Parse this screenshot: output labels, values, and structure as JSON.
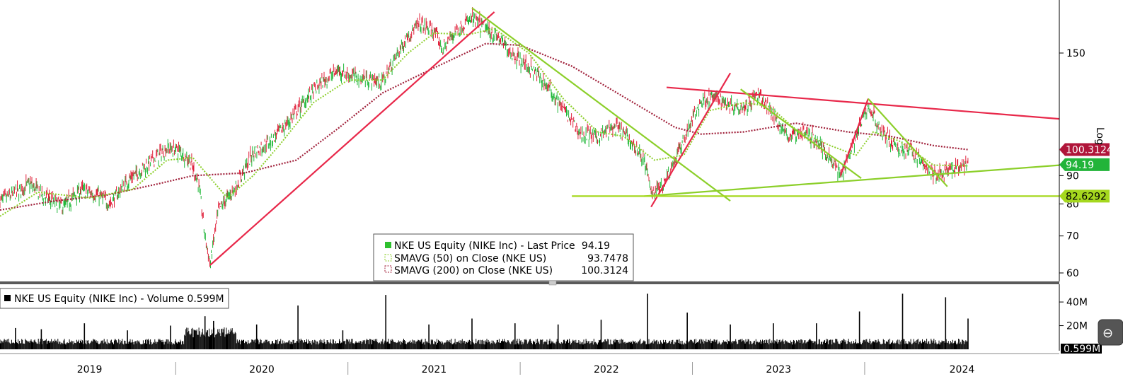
{
  "chart_data": [
    {
      "type": "candlestick",
      "scale": "log",
      "scale_label": "Log",
      "ylim": [
        58,
        185
      ],
      "y_ticks": [
        60,
        70,
        80,
        90,
        150
      ],
      "x_years": [
        "2019",
        "2020",
        "2021",
        "2022",
        "2023",
        "2024"
      ],
      "legend": {
        "placement": "bottom-center",
        "rows": [
          {
            "label": "NKE US Equity (NIKE Inc) - Last Price",
            "value": "94.19",
            "color": "#2ec02e"
          },
          {
            "label": "SMAVG (50)  on Close (NKE US)",
            "value": "93.7478",
            "color": "#8ccf2a"
          },
          {
            "label": "SMAVG (200)  on Close (NKE US)",
            "value": "100.3124",
            "color": "#a0203a"
          }
        ]
      },
      "price_tags": [
        {
          "value": 100.3124,
          "text": "100.3124",
          "bg": "#b0153a",
          "fg": "#ffffff"
        },
        {
          "value": 94.19,
          "text": "94.19",
          "bg": "#22b43a",
          "fg": "#ffffff"
        },
        {
          "value": 82.6292,
          "text": "82.6292",
          "bg": "#a5d81e",
          "fg": "#000000"
        }
      ],
      "close_path": [
        {
          "t": 2018.98,
          "v": 81
        },
        {
          "t": 2019.08,
          "v": 84
        },
        {
          "t": 2019.15,
          "v": 87
        },
        {
          "t": 2019.25,
          "v": 82
        },
        {
          "t": 2019.35,
          "v": 79
        },
        {
          "t": 2019.45,
          "v": 85
        },
        {
          "t": 2019.55,
          "v": 83
        },
        {
          "t": 2019.62,
          "v": 80
        },
        {
          "t": 2019.72,
          "v": 88
        },
        {
          "t": 2019.85,
          "v": 95
        },
        {
          "t": 2019.95,
          "v": 101
        },
        {
          "t": 2020.02,
          "v": 100
        },
        {
          "t": 2020.08,
          "v": 96
        },
        {
          "t": 2020.13,
          "v": 88
        },
        {
          "t": 2020.17,
          "v": 70
        },
        {
          "t": 2020.2,
          "v": 62
        },
        {
          "t": 2020.25,
          "v": 78
        },
        {
          "t": 2020.35,
          "v": 86
        },
        {
          "t": 2020.45,
          "v": 99
        },
        {
          "t": 2020.55,
          "v": 104
        },
        {
          "t": 2020.65,
          "v": 112
        },
        {
          "t": 2020.75,
          "v": 123
        },
        {
          "t": 2020.85,
          "v": 133
        },
        {
          "t": 2020.95,
          "v": 140
        },
        {
          "t": 2021.0,
          "v": 137
        },
        {
          "t": 2021.1,
          "v": 135
        },
        {
          "t": 2021.2,
          "v": 133
        },
        {
          "t": 2021.28,
          "v": 148
        },
        {
          "t": 2021.35,
          "v": 162
        },
        {
          "t": 2021.42,
          "v": 169
        },
        {
          "t": 2021.5,
          "v": 164
        },
        {
          "t": 2021.55,
          "v": 152
        },
        {
          "t": 2021.62,
          "v": 164
        },
        {
          "t": 2021.72,
          "v": 173
        },
        {
          "t": 2021.8,
          "v": 166
        },
        {
          "t": 2021.87,
          "v": 160
        },
        {
          "t": 2021.95,
          "v": 150
        },
        {
          "t": 2022.03,
          "v": 143
        },
        {
          "t": 2022.1,
          "v": 137
        },
        {
          "t": 2022.18,
          "v": 128
        },
        {
          "t": 2022.28,
          "v": 115
        },
        {
          "t": 2022.35,
          "v": 107
        },
        {
          "t": 2022.45,
          "v": 106
        },
        {
          "t": 2022.55,
          "v": 110
        },
        {
          "t": 2022.62,
          "v": 106
        },
        {
          "t": 2022.72,
          "v": 96
        },
        {
          "t": 2022.76,
          "v": 84
        },
        {
          "t": 2022.82,
          "v": 86
        },
        {
          "t": 2022.9,
          "v": 96
        },
        {
          "t": 2022.97,
          "v": 108
        },
        {
          "t": 2023.05,
          "v": 123
        },
        {
          "t": 2023.12,
          "v": 125
        },
        {
          "t": 2023.22,
          "v": 121
        },
        {
          "t": 2023.3,
          "v": 120
        },
        {
          "t": 2023.38,
          "v": 126
        },
        {
          "t": 2023.45,
          "v": 118
        },
        {
          "t": 2023.55,
          "v": 106
        },
        {
          "t": 2023.65,
          "v": 108
        },
        {
          "t": 2023.72,
          "v": 104
        },
        {
          "t": 2023.8,
          "v": 97
        },
        {
          "t": 2023.86,
          "v": 90
        },
        {
          "t": 2023.95,
          "v": 106
        },
        {
          "t": 2024.02,
          "v": 120
        },
        {
          "t": 2024.1,
          "v": 108
        },
        {
          "t": 2024.18,
          "v": 101
        },
        {
          "t": 2024.27,
          "v": 100
        },
        {
          "t": 2024.33,
          "v": 95
        },
        {
          "t": 2024.4,
          "v": 90
        },
        {
          "t": 2024.47,
          "v": 91
        },
        {
          "t": 2024.55,
          "v": 93
        },
        {
          "t": 2024.6,
          "v": 94.19
        }
      ],
      "sma50_path": [
        {
          "t": 2018.98,
          "v": 76
        },
        {
          "t": 2019.2,
          "v": 84
        },
        {
          "t": 2019.5,
          "v": 82
        },
        {
          "t": 2019.75,
          "v": 85
        },
        {
          "t": 2019.95,
          "v": 96
        },
        {
          "t": 2020.1,
          "v": 97
        },
        {
          "t": 2020.3,
          "v": 82
        },
        {
          "t": 2020.45,
          "v": 90
        },
        {
          "t": 2020.6,
          "v": 102
        },
        {
          "t": 2020.8,
          "v": 122
        },
        {
          "t": 2021.0,
          "v": 134
        },
        {
          "t": 2021.2,
          "v": 134
        },
        {
          "t": 2021.35,
          "v": 150
        },
        {
          "t": 2021.5,
          "v": 163
        },
        {
          "t": 2021.7,
          "v": 162
        },
        {
          "t": 2021.85,
          "v": 166
        },
        {
          "t": 2022.05,
          "v": 150
        },
        {
          "t": 2022.25,
          "v": 124
        },
        {
          "t": 2022.45,
          "v": 108
        },
        {
          "t": 2022.6,
          "v": 106
        },
        {
          "t": 2022.78,
          "v": 96
        },
        {
          "t": 2022.95,
          "v": 98
        },
        {
          "t": 2023.1,
          "v": 118
        },
        {
          "t": 2023.3,
          "v": 122
        },
        {
          "t": 2023.45,
          "v": 120
        },
        {
          "t": 2023.6,
          "v": 109
        },
        {
          "t": 2023.8,
          "v": 102
        },
        {
          "t": 2023.95,
          "v": 98
        },
        {
          "t": 2024.05,
          "v": 108
        },
        {
          "t": 2024.2,
          "v": 104
        },
        {
          "t": 2024.4,
          "v": 94
        },
        {
          "t": 2024.6,
          "v": 93.7478
        }
      ],
      "sma200_path": [
        {
          "t": 2018.98,
          "v": 78
        },
        {
          "t": 2019.3,
          "v": 81
        },
        {
          "t": 2019.6,
          "v": 83
        },
        {
          "t": 2019.9,
          "v": 87
        },
        {
          "t": 2020.1,
          "v": 90
        },
        {
          "t": 2020.4,
          "v": 91
        },
        {
          "t": 2020.7,
          "v": 96
        },
        {
          "t": 2020.95,
          "v": 110
        },
        {
          "t": 2021.2,
          "v": 127
        },
        {
          "t": 2021.5,
          "v": 141
        },
        {
          "t": 2021.8,
          "v": 156
        },
        {
          "t": 2022.0,
          "v": 155
        },
        {
          "t": 2022.3,
          "v": 142
        },
        {
          "t": 2022.6,
          "v": 125
        },
        {
          "t": 2022.9,
          "v": 110
        },
        {
          "t": 2023.05,
          "v": 107
        },
        {
          "t": 2023.3,
          "v": 108
        },
        {
          "t": 2023.6,
          "v": 112
        },
        {
          "t": 2023.9,
          "v": 108
        },
        {
          "t": 2024.15,
          "v": 106
        },
        {
          "t": 2024.4,
          "v": 102
        },
        {
          "t": 2024.6,
          "v": 100.3124
        }
      ],
      "trendlines": [
        {
          "color": "#e8284a",
          "from": {
            "t": 2020.2,
            "v": 62
          },
          "to": {
            "t": 2021.85,
            "v": 178
          }
        },
        {
          "color": "#e8284a",
          "from": {
            "t": 2022.76,
            "v": 79
          },
          "to": {
            "t": 2023.22,
            "v": 138
          }
        },
        {
          "color": "#e8284a",
          "from": {
            "t": 2023.86,
            "v": 90
          },
          "to": {
            "t": 2024.02,
            "v": 124
          }
        },
        {
          "color": "#e8284a",
          "from": {
            "t": 2022.85,
            "v": 130
          },
          "to": {
            "t": 2025.13,
            "v": 114
          }
        },
        {
          "color": "#8ccf2a",
          "from": {
            "t": 2021.72,
            "v": 181
          },
          "to": {
            "t": 2023.22,
            "v": 81
          }
        },
        {
          "color": "#8ccf2a",
          "from": {
            "t": 2023.28,
            "v": 129
          },
          "to": {
            "t": 2023.98,
            "v": 89
          }
        },
        {
          "color": "#8ccf2a",
          "from": {
            "t": 2024.02,
            "v": 124
          },
          "to": {
            "t": 2024.48,
            "v": 86
          }
        },
        {
          "color": "#8ccf2a",
          "from": {
            "t": 2022.72,
            "v": 82.6
          },
          "to": {
            "t": 2025.13,
            "v": 94
          }
        },
        {
          "color": "#a5d81e",
          "from": {
            "t": 2022.3,
            "v": 82.6292
          },
          "to": {
            "t": 2025.13,
            "v": 82.6292
          }
        }
      ]
    },
    {
      "type": "bar",
      "title": "NKE US Equity (NIKE Inc) - Volume 0.599M",
      "y_ticks": [
        {
          "value": 40,
          "label": "40M"
        },
        {
          "value": 20,
          "label": "20M"
        }
      ],
      "last_value_label": "0.599M",
      "ylim": [
        0,
        55
      ],
      "spikes": [
        {
          "t": 2019.07,
          "v": 18
        },
        {
          "t": 2019.22,
          "v": 17
        },
        {
          "t": 2019.47,
          "v": 22
        },
        {
          "t": 2019.72,
          "v": 16
        },
        {
          "t": 2019.97,
          "v": 20
        },
        {
          "t": 2020.17,
          "v": 28
        },
        {
          "t": 2020.22,
          "v": 24
        },
        {
          "t": 2020.47,
          "v": 21
        },
        {
          "t": 2020.71,
          "v": 37
        },
        {
          "t": 2020.97,
          "v": 16
        },
        {
          "t": 2021.22,
          "v": 46
        },
        {
          "t": 2021.47,
          "v": 21
        },
        {
          "t": 2021.72,
          "v": 26
        },
        {
          "t": 2021.97,
          "v": 22
        },
        {
          "t": 2022.22,
          "v": 21
        },
        {
          "t": 2022.47,
          "v": 25
        },
        {
          "t": 2022.74,
          "v": 47
        },
        {
          "t": 2022.97,
          "v": 31
        },
        {
          "t": 2023.22,
          "v": 21
        },
        {
          "t": 2023.47,
          "v": 22
        },
        {
          "t": 2023.72,
          "v": 22
        },
        {
          "t": 2023.97,
          "v": 32
        },
        {
          "t": 2024.22,
          "v": 47
        },
        {
          "t": 2024.47,
          "v": 44
        },
        {
          "t": 2024.6,
          "v": 26
        }
      ]
    }
  ]
}
